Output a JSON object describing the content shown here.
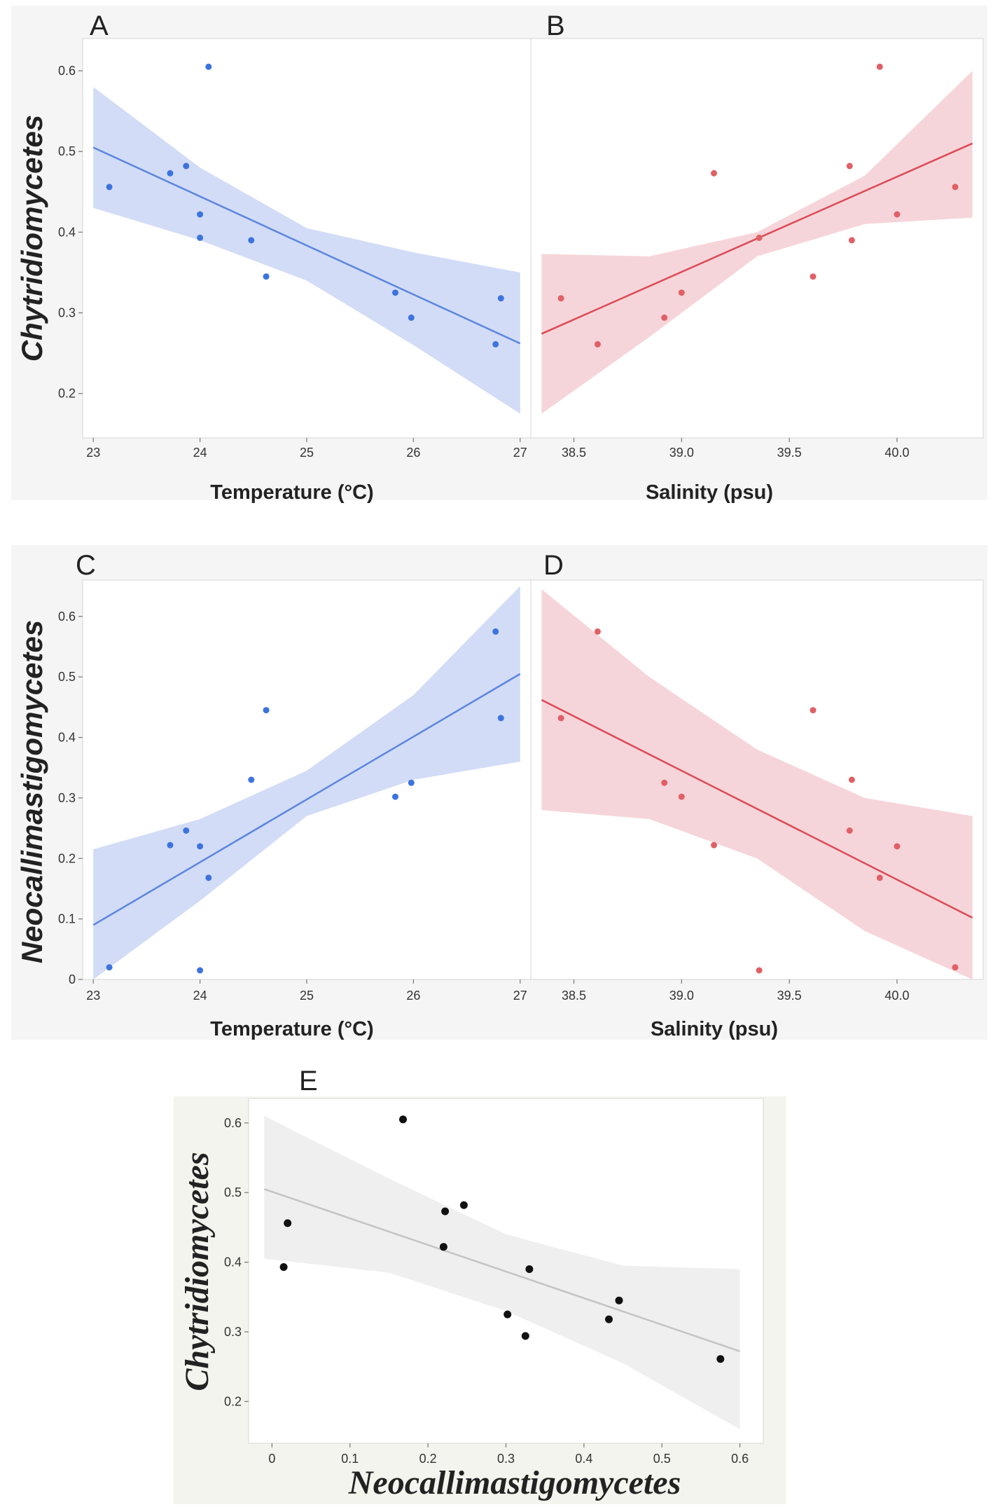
{
  "panel_labels": [
    "A",
    "B",
    "C",
    "D",
    "E"
  ],
  "colors": {
    "blue_line": "#5b86e0",
    "blue_band": "#cdd8f5",
    "blue_point": "#3d73dd",
    "red_line": "#dc4a55",
    "red_band": "#f5d0d6",
    "red_point": "#e06066",
    "gray_line": "#c4c4c4",
    "gray_band": "#ededed",
    "gray_point": "#111111",
    "frame_bg": "#f5f5f5",
    "frame_e_bg": "#f3f4ee"
  },
  "chart_data": [
    {
      "id": "A",
      "type": "scatter",
      "xlabel": "Temperature (°C)",
      "ylabel": "Chytridiomycetes",
      "xlim": [
        22.9,
        27.1
      ],
      "ylim": [
        0.145,
        0.64
      ],
      "xticks": [
        "23",
        "24",
        "25",
        "26",
        "27"
      ],
      "xtick_values": [
        23,
        24,
        25,
        26,
        27
      ],
      "yticks": [
        "0.2",
        "0.3",
        "0.4",
        "0.5",
        "0.6"
      ],
      "ytick_values": [
        0.2,
        0.3,
        0.4,
        0.5,
        0.6
      ],
      "points": [
        [
          23.15,
          0.456
        ],
        [
          23.72,
          0.473
        ],
        [
          23.87,
          0.482
        ],
        [
          24.0,
          0.422
        ],
        [
          24.0,
          0.393
        ],
        [
          24.08,
          0.605
        ],
        [
          24.48,
          0.39
        ],
        [
          24.62,
          0.345
        ],
        [
          25.83,
          0.325
        ],
        [
          25.98,
          0.294
        ],
        [
          26.77,
          0.261
        ],
        [
          26.82,
          0.318
        ]
      ],
      "fit": {
        "x": [
          23.0,
          27.0
        ],
        "y": [
          0.505,
          0.262
        ]
      },
      "band": {
        "x": [
          23.0,
          24.0,
          25.0,
          26.0,
          27.0
        ],
        "upper": [
          0.58,
          0.48,
          0.405,
          0.375,
          0.35
        ],
        "lower": [
          0.43,
          0.39,
          0.34,
          0.26,
          0.175
        ]
      },
      "color": "blue"
    },
    {
      "id": "B",
      "type": "scatter",
      "xlabel": "Salinity (psu)",
      "ylabel": "",
      "xlim": [
        38.3,
        40.4
      ],
      "ylim": [
        0.145,
        0.64
      ],
      "xticks": [
        "38.5",
        "39.0",
        "39.5",
        "40.0"
      ],
      "xtick_values": [
        38.5,
        39.0,
        39.5,
        40.0
      ],
      "yticks": [],
      "ytick_values": [],
      "points": [
        [
          38.44,
          0.318
        ],
        [
          38.61,
          0.261
        ],
        [
          38.92,
          0.294
        ],
        [
          39.0,
          0.325
        ],
        [
          39.15,
          0.473
        ],
        [
          39.36,
          0.393
        ],
        [
          39.61,
          0.345
        ],
        [
          39.78,
          0.482
        ],
        [
          39.79,
          0.39
        ],
        [
          39.92,
          0.605
        ],
        [
          40.0,
          0.422
        ],
        [
          40.27,
          0.456
        ]
      ],
      "fit": {
        "x": [
          38.35,
          40.35
        ],
        "y": [
          0.274,
          0.51
        ]
      },
      "band": {
        "x": [
          38.35,
          38.85,
          39.35,
          39.85,
          40.35
        ],
        "upper": [
          0.373,
          0.37,
          0.4,
          0.47,
          0.6
        ],
        "lower": [
          0.175,
          0.27,
          0.37,
          0.41,
          0.418
        ]
      },
      "color": "red"
    },
    {
      "id": "C",
      "type": "scatter",
      "xlabel": "Temperature (°C)",
      "ylabel": "Neocallimastigomycetes",
      "xlim": [
        22.9,
        27.1
      ],
      "ylim": [
        0.0,
        0.66
      ],
      "xticks": [
        "23",
        "24",
        "25",
        "26",
        "27"
      ],
      "xtick_values": [
        23,
        24,
        25,
        26,
        27
      ],
      "yticks": [
        "0",
        "0.1",
        "0.2",
        "0.3",
        "0.4",
        "0.5",
        "0.6"
      ],
      "ytick_values": [
        0,
        0.1,
        0.2,
        0.3,
        0.4,
        0.5,
        0.6
      ],
      "points": [
        [
          23.15,
          0.02
        ],
        [
          23.72,
          0.222
        ],
        [
          23.87,
          0.246
        ],
        [
          24.0,
          0.22
        ],
        [
          24.0,
          0.015
        ],
        [
          24.08,
          0.168
        ],
        [
          24.48,
          0.33
        ],
        [
          24.62,
          0.445
        ],
        [
          25.83,
          0.302
        ],
        [
          25.98,
          0.325
        ],
        [
          26.77,
          0.575
        ],
        [
          26.82,
          0.432
        ]
      ],
      "fit": {
        "x": [
          23.0,
          27.0
        ],
        "y": [
          0.09,
          0.505
        ]
      },
      "band": {
        "x": [
          23.0,
          24.0,
          25.0,
          26.0,
          27.0
        ],
        "upper": [
          0.215,
          0.265,
          0.345,
          0.47,
          0.65
        ],
        "lower": [
          0.0,
          0.13,
          0.27,
          0.33,
          0.36
        ]
      },
      "color": "blue"
    },
    {
      "id": "D",
      "type": "scatter",
      "xlabel": "Salinity (psu)",
      "ylabel": "",
      "xlim": [
        38.3,
        40.4
      ],
      "ylim": [
        0.0,
        0.66
      ],
      "xticks": [
        "38.5",
        "39.0",
        "39.5",
        "40.0"
      ],
      "xtick_values": [
        38.5,
        39.0,
        39.5,
        40.0
      ],
      "yticks": [],
      "ytick_values": [],
      "points": [
        [
          38.44,
          0.432
        ],
        [
          38.61,
          0.575
        ],
        [
          38.92,
          0.325
        ],
        [
          39.0,
          0.302
        ],
        [
          39.15,
          0.222
        ],
        [
          39.36,
          0.015
        ],
        [
          39.61,
          0.445
        ],
        [
          39.78,
          0.246
        ],
        [
          39.79,
          0.33
        ],
        [
          39.92,
          0.168
        ],
        [
          40.0,
          0.22
        ],
        [
          40.27,
          0.02
        ]
      ],
      "fit": {
        "x": [
          38.35,
          40.35
        ],
        "y": [
          0.462,
          0.102
        ]
      },
      "band": {
        "x": [
          38.35,
          38.85,
          39.35,
          39.85,
          40.35
        ],
        "upper": [
          0.645,
          0.5,
          0.38,
          0.3,
          0.27
        ],
        "lower": [
          0.28,
          0.265,
          0.2,
          0.08,
          0.0
        ]
      },
      "color": "red"
    },
    {
      "id": "E",
      "type": "scatter",
      "xlabel": "Neocallimastigomycetes",
      "ylabel": "Chytridiomycetes",
      "xlim": [
        -0.03,
        0.63
      ],
      "ylim": [
        0.14,
        0.635
      ],
      "xticks": [
        "0",
        "0.1",
        "0.2",
        "0.3",
        "0.4",
        "0.5",
        "0.6"
      ],
      "xtick_values": [
        0,
        0.1,
        0.2,
        0.3,
        0.4,
        0.5,
        0.6
      ],
      "yticks": [
        "0.2",
        "0.3",
        "0.4",
        "0.5",
        "0.6"
      ],
      "ytick_values": [
        0.2,
        0.3,
        0.4,
        0.5,
        0.6
      ],
      "points": [
        [
          0.02,
          0.456
        ],
        [
          0.015,
          0.393
        ],
        [
          0.168,
          0.605
        ],
        [
          0.222,
          0.473
        ],
        [
          0.246,
          0.482
        ],
        [
          0.22,
          0.422
        ],
        [
          0.33,
          0.39
        ],
        [
          0.302,
          0.325
        ],
        [
          0.325,
          0.294
        ],
        [
          0.432,
          0.318
        ],
        [
          0.445,
          0.345
        ],
        [
          0.575,
          0.261
        ]
      ],
      "fit": {
        "x": [
          -0.01,
          0.6
        ],
        "y": [
          0.505,
          0.272
        ]
      },
      "band": {
        "x": [
          -0.01,
          0.15,
          0.3,
          0.45,
          0.6
        ],
        "upper": [
          0.61,
          0.52,
          0.44,
          0.395,
          0.39
        ],
        "lower": [
          0.405,
          0.385,
          0.33,
          0.255,
          0.16
        ]
      },
      "color": "gray"
    }
  ]
}
